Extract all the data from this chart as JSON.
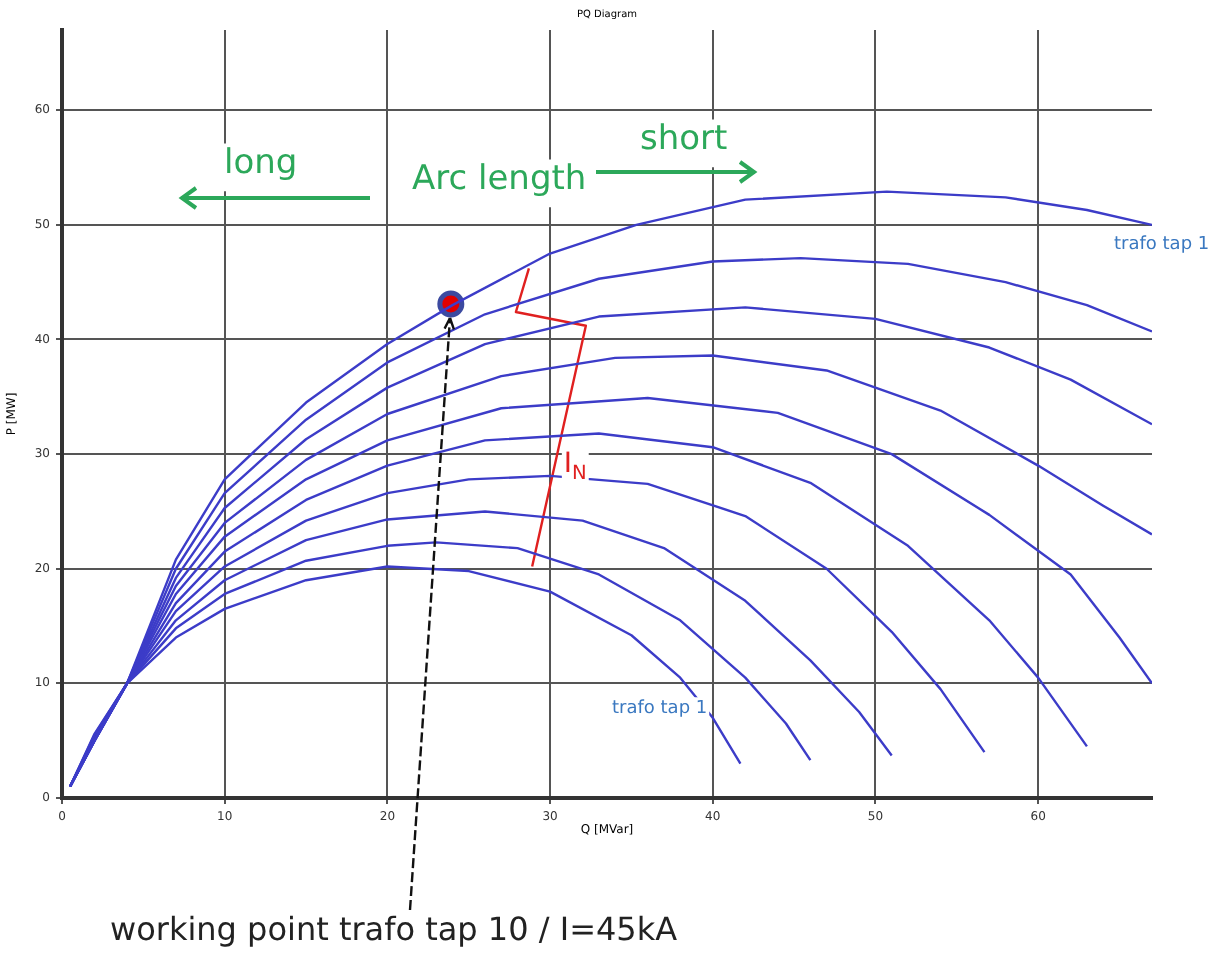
{
  "chart_data": {
    "type": "line",
    "title": "PQ Diagram",
    "xlabel": "Q [MVar]",
    "ylabel": "P [MW]",
    "xlim": [
      0,
      67
    ],
    "xticks": [
      0,
      10,
      20,
      30,
      40,
      50,
      60
    ],
    "ylim": [
      0,
      67
    ],
    "yticks": [
      0,
      10,
      20,
      30,
      40,
      50,
      60
    ],
    "grid": true,
    "legend": false,
    "marker": "none",
    "line_style": "solid",
    "series": [
      {
        "color": "#3c3cc8",
        "x": [
          0.5,
          2,
          4,
          7,
          10,
          15,
          20,
          25,
          30,
          35,
          38,
          40,
          41.7
        ],
        "values": [
          1,
          5,
          10,
          14,
          16.5,
          19,
          20.2,
          19.8,
          18,
          14.2,
          10.5,
          7,
          3
        ]
      },
      {
        "color": "#3c3cc8",
        "x": [
          0.5,
          2,
          4,
          7,
          10,
          15,
          20,
          23,
          28,
          33,
          38,
          42,
          44.5,
          46
        ],
        "values": [
          1,
          5,
          10,
          14.8,
          17.8,
          20.7,
          22,
          22.3,
          21.8,
          19.5,
          15.5,
          10.5,
          6.5,
          3.3
        ]
      },
      {
        "color": "#3c3cc8",
        "x": [
          0.5,
          2,
          4,
          7,
          10,
          15,
          20,
          26,
          32,
          37,
          42,
          46,
          49,
          51
        ],
        "values": [
          1,
          5,
          10,
          15.5,
          19,
          22.5,
          24.3,
          25,
          24.2,
          21.8,
          17.2,
          12,
          7.5,
          3.7
        ]
      },
      {
        "color": "#3c3cc8",
        "x": [
          0.5,
          2,
          4,
          7,
          10,
          15,
          20,
          25,
          30,
          36,
          42,
          47,
          51,
          54,
          56.7
        ],
        "values": [
          1,
          5,
          10,
          16.3,
          20.2,
          24.2,
          26.6,
          27.8,
          28.1,
          27.4,
          24.6,
          20,
          14.5,
          9.5,
          4
        ]
      },
      {
        "color": "#3c3cc8",
        "x": [
          0.5,
          2,
          4,
          7,
          10,
          15,
          20,
          26,
          33,
          40,
          46,
          52,
          57,
          60,
          63
        ],
        "values": [
          1,
          5,
          10,
          17,
          21.5,
          26,
          29,
          31.2,
          31.8,
          30.6,
          27.5,
          22,
          15.5,
          10.5,
          4.5
        ]
      },
      {
        "color": "#3c3cc8",
        "x": [
          0.5,
          2,
          4,
          7,
          10,
          15,
          20,
          27,
          36,
          44,
          51,
          57,
          62,
          65,
          67
        ],
        "values": [
          1,
          5.2,
          10,
          17.8,
          22.8,
          27.8,
          31.2,
          34,
          34.9,
          33.6,
          30,
          24.7,
          19.5,
          14,
          10
        ]
      },
      {
        "color": "#3c3cc8",
        "x": [
          0.5,
          2,
          4,
          7,
          10,
          15,
          20,
          27,
          34,
          40,
          47,
          54,
          60,
          64,
          67
        ],
        "values": [
          1,
          5.3,
          10,
          18.5,
          24,
          29.5,
          33.5,
          36.8,
          38.4,
          38.6,
          37.3,
          33.8,
          29,
          25.5,
          23
        ]
      },
      {
        "color": "#3c3cc8",
        "x": [
          0.5,
          2,
          4,
          7,
          10,
          15,
          20,
          26,
          33,
          42,
          50,
          57,
          62,
          67
        ],
        "values": [
          1,
          5.4,
          10,
          19.2,
          25.3,
          31.3,
          35.8,
          39.6,
          42,
          42.8,
          41.8,
          39.3,
          36.5,
          32.6
        ]
      },
      {
        "color": "#3c3cc8",
        "x": [
          0.5,
          2,
          4,
          7,
          10,
          15,
          20,
          26,
          33,
          40,
          45.4,
          52,
          58,
          63,
          67
        ],
        "values": [
          1,
          5.5,
          10,
          20,
          26.6,
          33,
          38,
          42.2,
          45.3,
          46.8,
          47.1,
          46.6,
          45,
          43,
          40.7
        ]
      },
      {
        "color": "#3c3cc8",
        "x": [
          0.5,
          2,
          4,
          7,
          10,
          15,
          20,
          24,
          30,
          35.3,
          42,
          50.7,
          58,
          63,
          67
        ],
        "values": [
          1,
          5.6,
          10,
          20.8,
          27.8,
          34.5,
          39.6,
          43,
          47.5,
          50,
          52.2,
          52.9,
          52.4,
          51.3,
          50
        ]
      },
      {
        "type": "line",
        "color": "#e02020",
        "x": [
          28.7,
          27.9,
          32.2,
          28.9
        ],
        "values": [
          46.2,
          42.4,
          41.2,
          20.2
        ]
      },
      {
        "type": "scatter",
        "marker": "circle",
        "color": "#e00000",
        "x": [
          23.9
        ],
        "values": [
          43.1
        ]
      }
    ],
    "annotations": [
      "long",
      "Arc length",
      "short",
      {
        "text": "I$_{N}$",
        "x": 30.6,
        "y": 29.1
      },
      "trafo tap 1",
      "trafo tap 1",
      {
        "text": "working point trafo tap 10 / I=45kA",
        "x": 23.9,
        "y": 43.1
      }
    ]
  }
}
